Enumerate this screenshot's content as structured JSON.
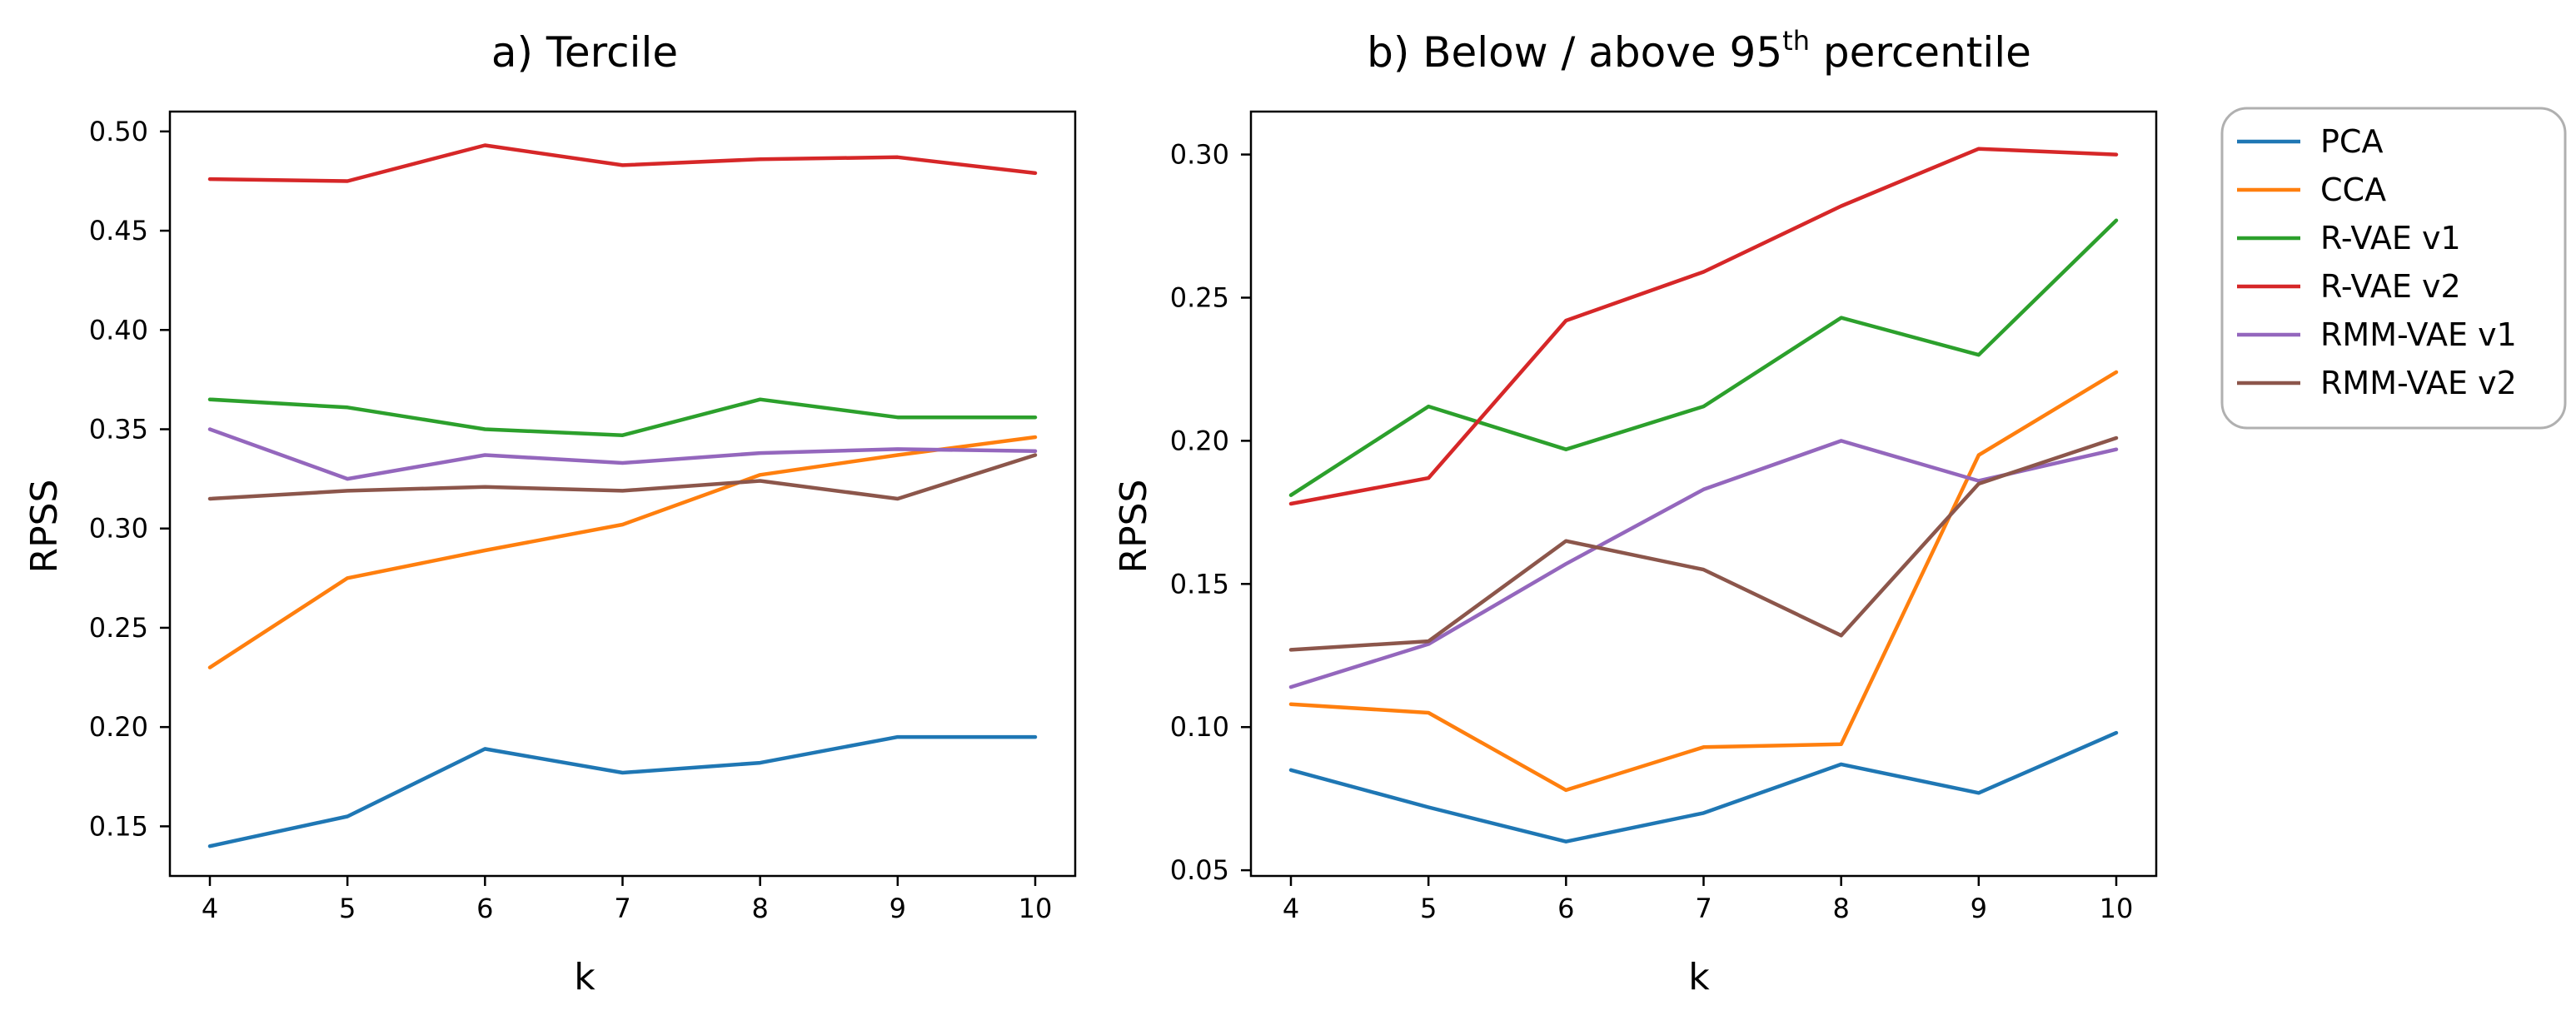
{
  "chart_data": [
    {
      "type": "line",
      "title": "a) Tercile",
      "title_main": "a) Tercile",
      "title_sup": "",
      "title_tail": "",
      "xlabel": "k",
      "ylabel": "RPSS",
      "x": [
        4,
        5,
        6,
        7,
        8,
        9,
        10
      ],
      "ylim": [
        0.125,
        0.51
      ],
      "yticks": [
        "0.15",
        "0.20",
        "0.25",
        "0.30",
        "0.35",
        "0.40",
        "0.45",
        "0.50"
      ],
      "xticks": [
        "4",
        "5",
        "6",
        "7",
        "8",
        "9",
        "10"
      ],
      "grid": false,
      "series": [
        {
          "name": "PCA",
          "values": [
            0.14,
            0.155,
            0.189,
            0.177,
            0.182,
            0.195,
            0.195
          ]
        },
        {
          "name": "CCA",
          "values": [
            0.23,
            0.275,
            0.289,
            0.302,
            0.327,
            0.337,
            0.346
          ]
        },
        {
          "name": "R-VAE v1",
          "values": [
            0.365,
            0.361,
            0.35,
            0.347,
            0.365,
            0.356,
            0.356
          ]
        },
        {
          "name": "R-VAE v2",
          "values": [
            0.476,
            0.475,
            0.493,
            0.483,
            0.486,
            0.487,
            0.479
          ]
        },
        {
          "name": "RMM-VAE v1",
          "values": [
            0.35,
            0.325,
            0.337,
            0.333,
            0.338,
            0.34,
            0.339
          ]
        },
        {
          "name": "RMM-VAE v2",
          "values": [
            0.315,
            0.319,
            0.321,
            0.319,
            0.324,
            0.315,
            0.337
          ]
        }
      ]
    },
    {
      "type": "line",
      "title": "b) Below / above 95th percentile",
      "title_main": "b) Below / above 95",
      "title_sup": "th",
      "title_tail": " percentile",
      "xlabel": "k",
      "ylabel": "RPSS",
      "x": [
        4,
        5,
        6,
        7,
        8,
        9,
        10
      ],
      "ylim": [
        0.048,
        0.315
      ],
      "yticks": [
        "0.05",
        "0.10",
        "0.15",
        "0.20",
        "0.25",
        "0.30"
      ],
      "xticks": [
        "4",
        "5",
        "6",
        "7",
        "8",
        "9",
        "10"
      ],
      "grid": false,
      "series": [
        {
          "name": "PCA",
          "values": [
            0.085,
            0.072,
            0.06,
            0.07,
            0.087,
            0.077,
            0.098
          ]
        },
        {
          "name": "CCA",
          "values": [
            0.108,
            0.105,
            0.078,
            0.093,
            0.094,
            0.195,
            0.224
          ]
        },
        {
          "name": "R-VAE v1",
          "values": [
            0.181,
            0.212,
            0.197,
            0.212,
            0.243,
            0.23,
            0.277
          ]
        },
        {
          "name": "R-VAE v2",
          "values": [
            0.178,
            0.187,
            0.242,
            0.259,
            0.282,
            0.302,
            0.3
          ]
        },
        {
          "name": "RMM-VAE v1",
          "values": [
            0.114,
            0.129,
            0.157,
            0.183,
            0.2,
            0.186,
            0.197
          ]
        },
        {
          "name": "RMM-VAE v2",
          "values": [
            0.127,
            0.13,
            0.165,
            0.155,
            0.132,
            0.185,
            0.201
          ]
        }
      ]
    }
  ],
  "legend": {
    "placement": "right",
    "entries": [
      "PCA",
      "CCA",
      "R-VAE v1",
      "R-VAE v2",
      "RMM-VAE v1",
      "RMM-VAE v2"
    ]
  },
  "colors": {
    "PCA": "#1f77b4",
    "CCA": "#ff7f0e",
    "R-VAE v1": "#2ca02c",
    "R-VAE v2": "#d62728",
    "RMM-VAE v1": "#9467bd",
    "RMM-VAE v2": "#8c564b"
  }
}
